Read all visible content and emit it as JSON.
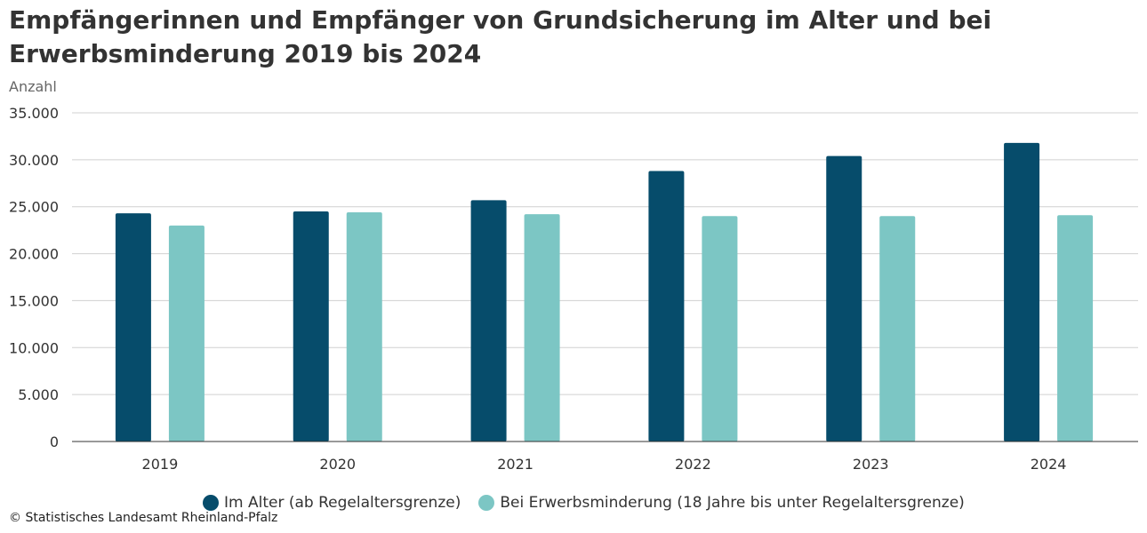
{
  "colors": {
    "series_1": "#064c6b",
    "series_2": "#7cc6c4",
    "grid": "#d0d0d0",
    "axis": "#333333"
  },
  "chart_data": {
    "type": "bar",
    "title": "Empfängerinnen und Empfänger von Grundsicherung im Alter und bei Erwerbsminderung 2019 bis 2024",
    "ylabel": "Anzahl",
    "xlabel": "",
    "categories": [
      "2019",
      "2020",
      "2021",
      "2022",
      "2023",
      "2024"
    ],
    "series": [
      {
        "name": "Im Alter (ab Regelaltersgrenze)",
        "values": [
          24300,
          24500,
          25700,
          28800,
          30400,
          31800
        ]
      },
      {
        "name": "Bei Erwerbsminderung (18 Jahre bis unter Regelaltersgrenze)",
        "values": [
          23000,
          24400,
          24200,
          24000,
          24000,
          24100
        ]
      }
    ],
    "ylim": [
      0,
      35000
    ],
    "yticks": [
      0,
      5000,
      10000,
      15000,
      20000,
      25000,
      30000,
      35000
    ],
    "ytick_labels": [
      "0",
      "5.000",
      "10.000",
      "15.000",
      "20.000",
      "25.000",
      "30.000",
      "35.000"
    ],
    "grid": true,
    "legend_position": "bottom"
  },
  "source": "© Statistisches Landesamt Rheinland-Pfalz"
}
